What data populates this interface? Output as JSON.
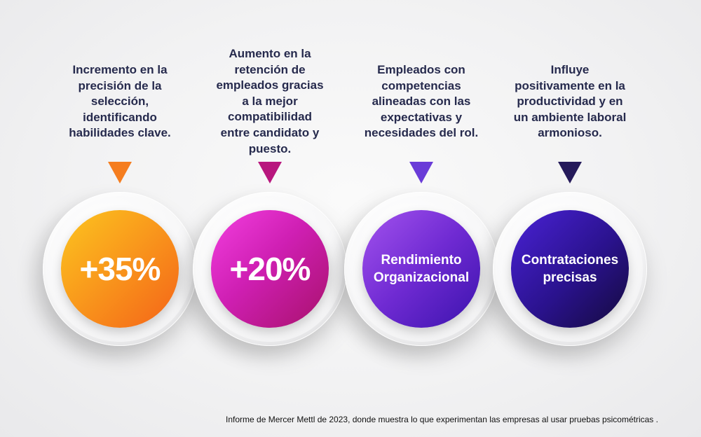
{
  "items": [
    {
      "description": "Incremento en la\nprecisión de la\nselección,\nidentificando\nhabilidades clave.",
      "circle_text": "+35%",
      "arrow_color": "#f57d1f"
    },
    {
      "description": "Aumento en la\nretención de\nempleados gracias\na la mejor\ncompatibilidad\nentre candidato y\npuesto.",
      "circle_text": "+20%",
      "arrow_color": "#b8177e"
    },
    {
      "description": "Empleados con\ncompetencias\nalineadas con las\nexpectativas y\nnecesidades del rol.",
      "circle_text": "Rendimiento\nOrganizacional",
      "arrow_color": "#6a3cd8"
    },
    {
      "description": "Influye\npositivamente en la\nproductividad y en\nun ambiente laboral\narmonioso.",
      "circle_text": "Contrataciones\nprecisas",
      "arrow_color": "#251a5a"
    }
  ],
  "source_note": "Informe de Mercer Mettl de 2023, donde muestra lo que experimentan las empresas al usar pruebas psicométricas ."
}
